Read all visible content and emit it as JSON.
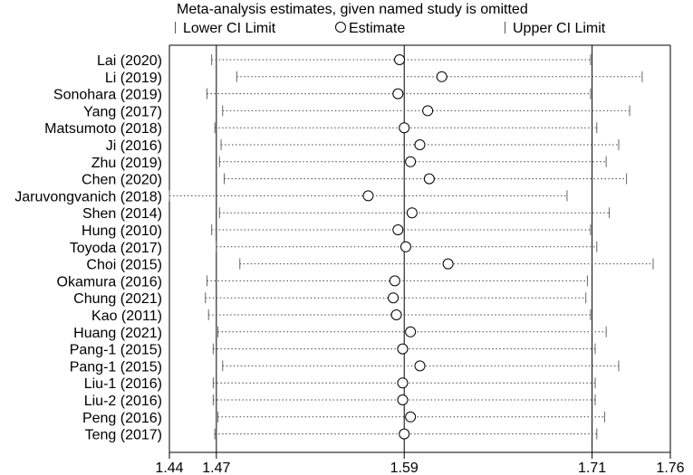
{
  "chart_data": {
    "type": "forest",
    "title": "Meta-analysis estimates, given named study is omitted",
    "legend": {
      "lower": "Lower CI Limit",
      "estimate": "Estimate",
      "upper": "Upper CI Limit"
    },
    "x_ticks": [
      "1.44",
      "1.47",
      "1.59",
      "1.71",
      "1.76"
    ],
    "xlim": [
      1.44,
      1.76
    ],
    "reference_lines": [
      1.47,
      1.59,
      1.71
    ],
    "studies": [
      {
        "label": "Lai (2020)",
        "lower": 1.467,
        "estimate": 1.587,
        "upper": 1.709
      },
      {
        "label": "Li (2019)",
        "lower": 1.483,
        "estimate": 1.614,
        "upper": 1.742
      },
      {
        "label": "Sonohara (2019)",
        "lower": 1.464,
        "estimate": 1.586,
        "upper": 1.709
      },
      {
        "label": "Yang (2017)",
        "lower": 1.474,
        "estimate": 1.605,
        "upper": 1.734
      },
      {
        "label": "Matsumoto (2018)",
        "lower": 1.469,
        "estimate": 1.59,
        "upper": 1.713
      },
      {
        "label": "Ji (2016)",
        "lower": 1.473,
        "estimate": 1.6,
        "upper": 1.727
      },
      {
        "label": "Zhu (2019)",
        "lower": 1.472,
        "estimate": 1.594,
        "upper": 1.719
      },
      {
        "label": "Chen (2020)",
        "lower": 1.475,
        "estimate": 1.606,
        "upper": 1.732
      },
      {
        "label": "Jaruvongvanich (2018)",
        "lower": 1.44,
        "estimate": 1.567,
        "upper": 1.694
      },
      {
        "label": "Shen (2014)",
        "lower": 1.472,
        "estimate": 1.595,
        "upper": 1.721
      },
      {
        "label": "Hung (2010)",
        "lower": 1.467,
        "estimate": 1.586,
        "upper": 1.709
      },
      {
        "label": "Toyoda (2017)",
        "lower": 1.47,
        "estimate": 1.591,
        "upper": 1.713
      },
      {
        "label": "Choi (2015)",
        "lower": 1.485,
        "estimate": 1.618,
        "upper": 1.749
      },
      {
        "label": "Okamura (2016)",
        "lower": 1.464,
        "estimate": 1.584,
        "upper": 1.707
      },
      {
        "label": "Chung (2021)",
        "lower": 1.463,
        "estimate": 1.583,
        "upper": 1.706
      },
      {
        "label": "Kao (2011)",
        "lower": 1.465,
        "estimate": 1.585,
        "upper": 1.709
      },
      {
        "label": "Huang (2021)",
        "lower": 1.471,
        "estimate": 1.594,
        "upper": 1.719
      },
      {
        "label": "Pang-1 (2015)",
        "lower": 1.468,
        "estimate": 1.589,
        "upper": 1.712
      },
      {
        "label": "Pang-1 (2015)",
        "lower": 1.474,
        "estimate": 1.6,
        "upper": 1.727
      },
      {
        "label": "Liu-1 (2016)",
        "lower": 1.468,
        "estimate": 1.589,
        "upper": 1.712
      },
      {
        "label": "Liu-2 (2016)",
        "lower": 1.468,
        "estimate": 1.589,
        "upper": 1.712
      },
      {
        "label": "Peng (2016)",
        "lower": 1.471,
        "estimate": 1.594,
        "upper": 1.718
      },
      {
        "label": "Teng (2017)",
        "lower": 1.469,
        "estimate": 1.59,
        "upper": 1.713
      }
    ]
  }
}
